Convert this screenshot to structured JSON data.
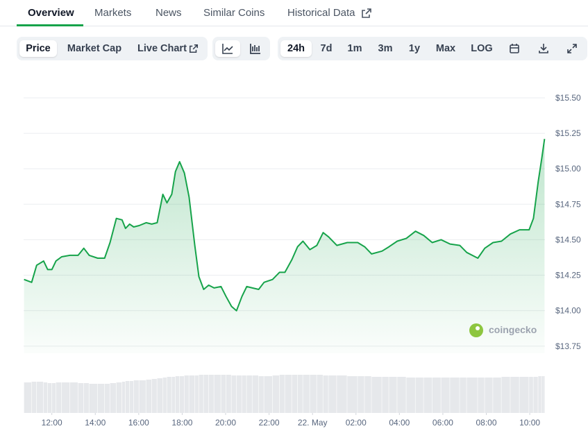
{
  "tabs": [
    "Overview",
    "Markets",
    "News",
    "Similar Coins",
    "Historical Data"
  ],
  "metric_buttons": [
    "Price",
    "Market Cap",
    "Live Chart"
  ],
  "range_buttons": [
    "24h",
    "7d",
    "1m",
    "3m",
    "1y",
    "Max",
    "LOG"
  ],
  "watermark": "coingecko",
  "chart_data": {
    "type": "line",
    "color": "#16a34a",
    "x": [
      10.72,
      11.07,
      11.3,
      11.62,
      11.81,
      12.0,
      12.19,
      12.45,
      12.83,
      13.21,
      13.47,
      13.72,
      14.11,
      14.43,
      14.68,
      14.97,
      15.23,
      15.39,
      15.58,
      15.77,
      16.02,
      16.34,
      16.6,
      16.85,
      17.11,
      17.3,
      17.52,
      17.69,
      17.88,
      18.1,
      18.32,
      18.58,
      18.77,
      18.99,
      19.22,
      19.47,
      19.79,
      20.02,
      20.27,
      20.5,
      20.75,
      20.97,
      21.23,
      21.52,
      21.77,
      22.16,
      22.48,
      22.73,
      23.05,
      23.31,
      23.56,
      23.88,
      24.2,
      24.49,
      24.74,
      25.12,
      25.6,
      26.08,
      26.4,
      26.72,
      27.2,
      27.52,
      27.9,
      28.32,
      28.74,
      29.12,
      29.51,
      29.92,
      30.33,
      30.78,
      31.1,
      31.61,
      31.93,
      32.31,
      32.7,
      33.11,
      33.53,
      33.97,
      34.17,
      34.39,
      34.55,
      34.68
    ],
    "values": [
      14.22,
      14.2,
      14.32,
      14.35,
      14.29,
      14.29,
      14.35,
      14.38,
      14.39,
      14.39,
      14.44,
      14.39,
      14.37,
      14.37,
      14.48,
      14.65,
      14.64,
      14.58,
      14.61,
      14.59,
      14.6,
      14.62,
      14.61,
      14.62,
      14.82,
      14.76,
      14.82,
      14.98,
      15.05,
      14.97,
      14.8,
      14.46,
      14.24,
      14.15,
      14.18,
      14.16,
      14.17,
      14.1,
      14.03,
      14.0,
      14.1,
      14.17,
      14.16,
      14.15,
      14.2,
      14.22,
      14.27,
      14.27,
      14.36,
      14.45,
      14.49,
      14.43,
      14.46,
      14.55,
      14.52,
      14.46,
      14.48,
      14.48,
      14.45,
      14.4,
      14.42,
      14.45,
      14.49,
      14.51,
      14.56,
      14.53,
      14.48,
      14.5,
      14.47,
      14.46,
      14.41,
      14.37,
      14.44,
      14.48,
      14.49,
      14.54,
      14.57,
      14.57,
      14.65,
      14.91,
      15.07,
      15.21
    ],
    "volume": [
      44,
      45,
      45,
      44,
      43,
      43,
      44,
      44,
      44,
      43,
      43,
      42,
      42,
      42,
      43,
      44,
      45,
      46,
      46,
      47,
      47,
      48,
      49,
      50,
      51,
      52,
      52,
      53,
      53,
      54,
      54,
      54,
      55,
      55,
      55,
      55,
      55,
      55,
      54,
      54,
      54,
      54,
      54,
      53,
      53,
      54,
      55,
      55,
      55,
      55,
      55,
      55,
      55,
      54,
      54,
      54,
      53,
      53,
      53,
      52,
      52,
      52,
      52,
      51,
      51,
      51,
      51,
      51,
      51,
      51,
      51,
      51,
      51,
      51,
      52,
      52,
      52,
      52,
      52,
      53,
      53,
      53
    ],
    "volume_lim": [
      0,
      60
    ],
    "xlim": [
      10.7,
      34.7
    ],
    "xticks": [
      {
        "value": 12,
        "label": "12:00"
      },
      {
        "value": 14,
        "label": "14:00"
      },
      {
        "value": 16,
        "label": "16:00"
      },
      {
        "value": 18,
        "label": "18:00"
      },
      {
        "value": 20,
        "label": "20:00"
      },
      {
        "value": 22,
        "label": "22:00"
      },
      {
        "value": 24,
        "label": "22. May"
      },
      {
        "value": 26,
        "label": "02:00"
      },
      {
        "value": 28,
        "label": "04:00"
      },
      {
        "value": 30,
        "label": "06:00"
      },
      {
        "value": 32,
        "label": "08:00"
      },
      {
        "value": 34,
        "label": "10:00"
      }
    ],
    "ylim": [
      13.7,
      15.6
    ],
    "yticks": [
      {
        "value": 13.75,
        "label": "$13.75"
      },
      {
        "value": 14.0,
        "label": "$14.00"
      },
      {
        "value": 14.25,
        "label": "$14.25"
      },
      {
        "value": 14.5,
        "label": "$14.50"
      },
      {
        "value": 14.75,
        "label": "$14.75"
      },
      {
        "value": 15.0,
        "label": "$15.00"
      },
      {
        "value": 15.25,
        "label": "$15.25"
      },
      {
        "value": 15.5,
        "label": "$15.50"
      }
    ],
    "grid": true
  }
}
